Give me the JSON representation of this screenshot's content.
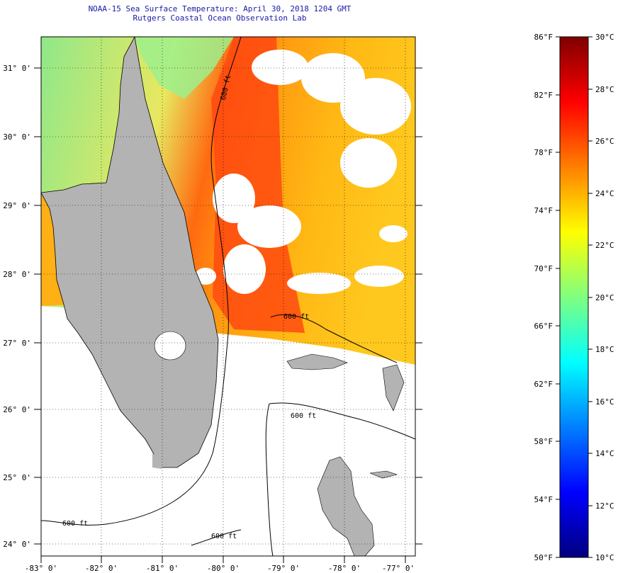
{
  "title_line1": "NOAA-15 Sea Surface Temperature:  April 30, 2018 1204 GMT",
  "title_line2": "Rutgers Coastal Ocean Observation Lab",
  "map": {
    "lon_labels": [
      "-83° 0'",
      "-82° 0'",
      "-81° 0'",
      "-80° 0'",
      "-79° 0'",
      "-78° 0'",
      "-77° 0'"
    ],
    "lat_labels": [
      "31° 0'",
      "30° 0'",
      "29° 0'",
      "28° 0'",
      "27° 0'",
      "26° 0'",
      "25° 0'",
      "24° 0'"
    ],
    "contour_labels": [
      "600 ft",
      "600 ft",
      "600 ft",
      "600 ft",
      "600 ft"
    ],
    "colors": {
      "land": "#b3b3b3",
      "no_data": "#ffffff",
      "cloud": "#ffffff"
    }
  },
  "colorbar": {
    "f_labels": [
      "86°F",
      "82°F",
      "78°F",
      "74°F",
      "70°F",
      "66°F",
      "62°F",
      "58°F",
      "54°F",
      "50°F"
    ],
    "c_labels": [
      "30°C",
      "28°C",
      "26°C",
      "24°C",
      "22°C",
      "20°C",
      "18°C",
      "16°C",
      "14°C",
      "12°C",
      "10°C"
    ],
    "range_f": [
      50,
      86
    ],
    "range_c": [
      10,
      30
    ],
    "stops": [
      "#00007f",
      "#0000ff",
      "#007fff",
      "#00ffff",
      "#7fff7f",
      "#ffff00",
      "#ff7f00",
      "#ff0000",
      "#7f0000"
    ]
  }
}
